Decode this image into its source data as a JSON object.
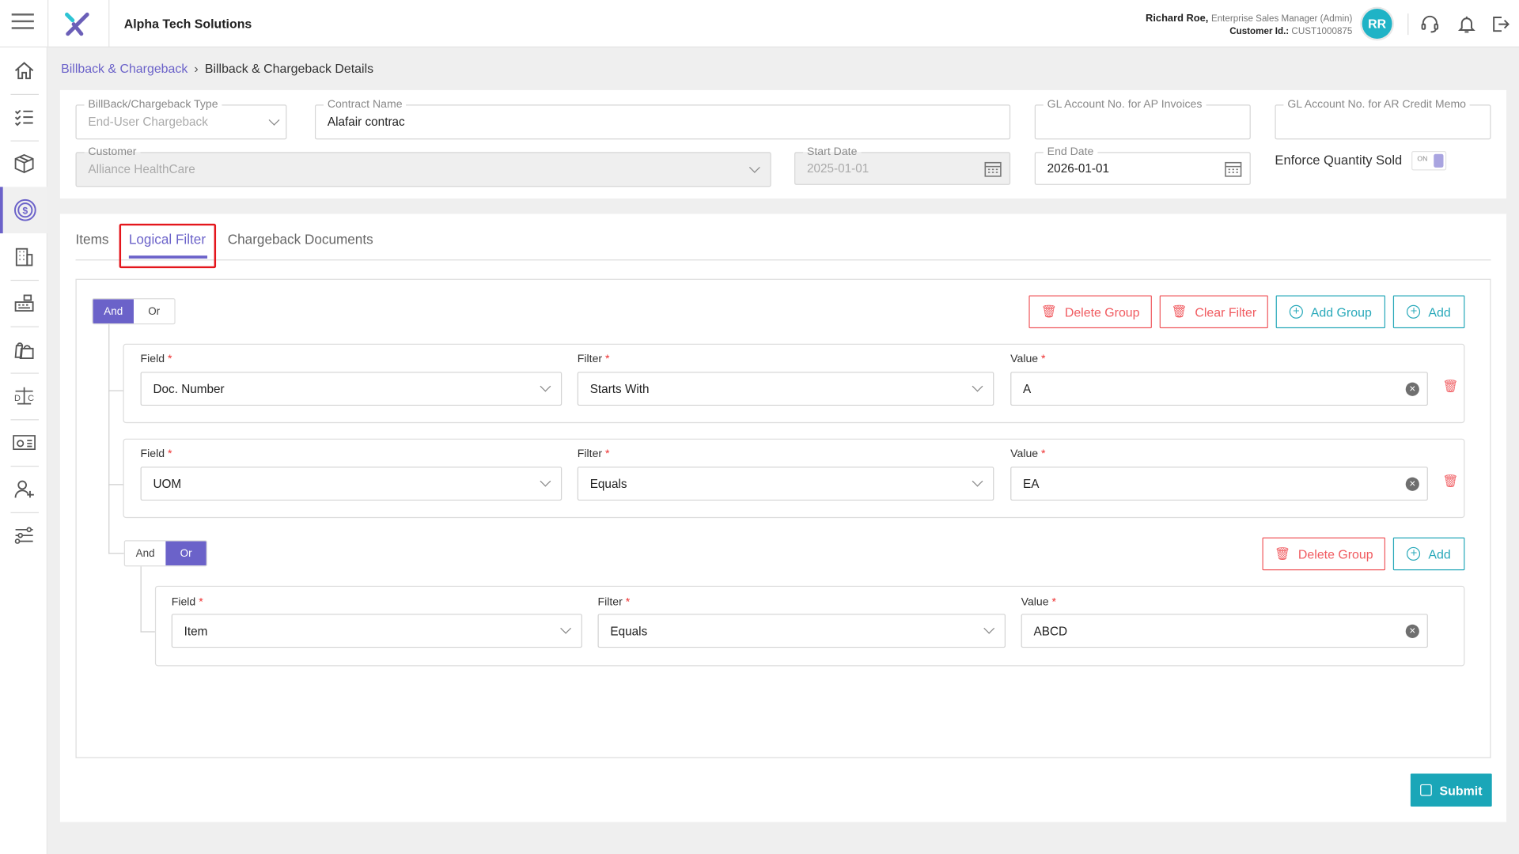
{
  "header": {
    "company": "Alpha Tech Solutions",
    "user_name": "Richard Roe,",
    "user_role": "Enterprise Sales Manager (Admin)",
    "customer_id_label": "Customer Id.:",
    "customer_id": "CUST1000875",
    "avatar_initials": "RR",
    "colors": {
      "accent": "#6b62c9",
      "avatar": "#1fb3c6",
      "danger": "#f05a5f",
      "teal": "#29a9ba"
    }
  },
  "sidebar": {
    "items": [
      {
        "icon": "home-icon"
      },
      {
        "icon": "checklist-icon"
      },
      {
        "icon": "box-icon"
      },
      {
        "icon": "dollar-coin-icon",
        "active": true
      },
      {
        "icon": "building-icon"
      },
      {
        "icon": "cash-register-icon"
      },
      {
        "icon": "shopping-bags-icon"
      },
      {
        "icon": "scale-icon"
      },
      {
        "icon": "id-card-icon"
      },
      {
        "icon": "add-user-icon"
      },
      {
        "icon": "sliders-icon"
      }
    ]
  },
  "breadcrumb": {
    "parent": "Billback & Chargeback",
    "current": "Billback & Chargeback Details"
  },
  "form": {
    "type": {
      "label": "BillBack/Chargeback Type",
      "value": "End-User Chargeback"
    },
    "contract": {
      "label": "Contract Name",
      "value": "Alafair contrac"
    },
    "gl_ap": {
      "label": "GL Account No. for AP Invoices",
      "value": ""
    },
    "gl_ar": {
      "label": "GL Account No. for AR Credit Memo",
      "value": ""
    },
    "customer": {
      "label": "Customer",
      "value": "Alliance HealthCare"
    },
    "start_date": {
      "label": "Start Date",
      "value": "2025-01-01"
    },
    "end_date": {
      "label": "End Date",
      "value": "2026-01-01"
    },
    "enforce": {
      "label": "Enforce Quantity Sold",
      "toggle_text": "ON",
      "on": true
    }
  },
  "tabs": [
    {
      "label": "Items"
    },
    {
      "label": "Logical Filter",
      "active": true
    },
    {
      "label": "Chargeback Documents"
    }
  ],
  "filter": {
    "and_label": "And",
    "or_label": "Or",
    "buttons": {
      "delete_group": "Delete Group",
      "clear_filter": "Clear Filter",
      "add_group": "Add Group",
      "add": "Add"
    },
    "field_label": "Field",
    "filter_label": "Filter",
    "value_label": "Value",
    "req": "*",
    "rules": [
      {
        "field": "Doc. Number",
        "filter": "Starts With",
        "value": "A"
      },
      {
        "field": "UOM",
        "filter": "Equals",
        "value": "EA"
      }
    ],
    "group": {
      "mode": "Or",
      "rules": [
        {
          "field": "Item",
          "filter": "Equals",
          "value": "ABCD"
        }
      ]
    }
  },
  "submit_label": "Submit"
}
